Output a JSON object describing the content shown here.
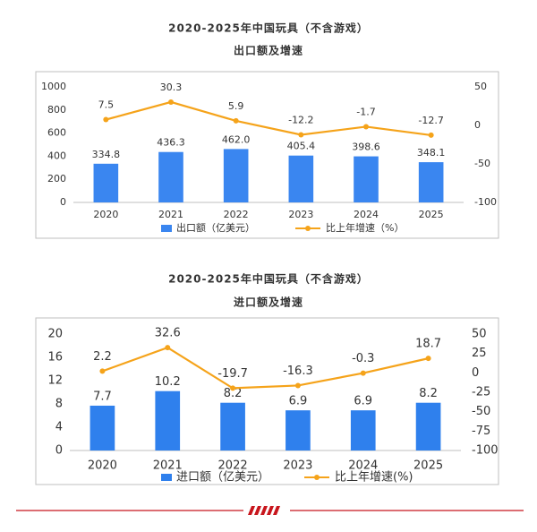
{
  "chart_data": [
    {
      "type": "combo",
      "title": "2020-2025年中国玩具（不含游戏）",
      "subtitle": "出口额及增速",
      "categories": [
        "2020",
        "2021",
        "2022",
        "2023",
        "2024",
        "2025"
      ],
      "series": [
        {
          "name": "出口额（亿美元）",
          "type": "bar",
          "color": "#3a86f0",
          "values": [
            334.8,
            436.3,
            462.0,
            405.4,
            398.6,
            348.1
          ],
          "value_labels": [
            "334.8",
            "436.3",
            "462.0",
            "405.4",
            "398.6",
            "348.1"
          ]
        },
        {
          "name": "比上年增速（%）",
          "type": "line",
          "axis": "y2",
          "color": "#f5a31a",
          "values": [
            7.5,
            30.3,
            5.9,
            -12.2,
            -1.7,
            -12.7
          ]
        }
      ],
      "ylim": [
        0,
        1000
      ],
      "yticks": [
        0,
        200,
        400,
        600,
        800,
        1000
      ],
      "y2lim": [
        -100,
        50
      ],
      "y2ticks": [
        -100,
        -50,
        0,
        50
      ],
      "grid": false,
      "legend": "bottom"
    },
    {
      "type": "combo",
      "title": "2020-2025年中国玩具（不含游戏）",
      "subtitle": "进口额及增速",
      "categories": [
        "2020",
        "2021",
        "2022",
        "2023",
        "2024",
        "2025"
      ],
      "series": [
        {
          "name": "进口额（亿美元）",
          "type": "bar",
          "color": "#2f80ed",
          "values": [
            7.7,
            10.2,
            8.2,
            6.9,
            6.9,
            8.2
          ]
        },
        {
          "name": "比上年增速(%)",
          "type": "line",
          "axis": "y2",
          "color": "#f5a31a",
          "values": [
            2.2,
            32.6,
            -19.7,
            -16.3,
            -0.3,
            18.7
          ]
        }
      ],
      "ylim": [
        0,
        20
      ],
      "yticks": [
        0,
        4,
        8,
        12,
        16,
        20
      ],
      "y2lim": [
        -100,
        50
      ],
      "y2ticks": [
        -100,
        -75,
        -50,
        -25,
        0,
        25,
        50
      ],
      "grid": false,
      "legend": "bottom"
    }
  ]
}
